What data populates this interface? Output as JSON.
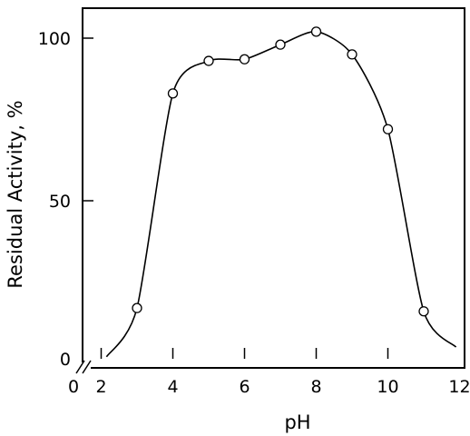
{
  "chart_data": {
    "type": "line",
    "title": "",
    "xlabel": "pH",
    "ylabel": "Residual Activity, %",
    "xlim": [
      0,
      12
    ],
    "ylim": [
      0,
      100
    ],
    "x_axis_break": true,
    "x_origin_label": "0",
    "y_origin_label": "0",
    "x_ticks": [
      {
        "value": 2,
        "label": "2"
      },
      {
        "value": 4,
        "label": "4"
      },
      {
        "value": 6,
        "label": "6"
      },
      {
        "value": 8,
        "label": "8"
      },
      {
        "value": 10,
        "label": "10"
      },
      {
        "value": 12,
        "label": "12"
      }
    ],
    "y_ticks": [
      {
        "value": 50,
        "label": "50"
      },
      {
        "value": 100,
        "label": "100"
      }
    ],
    "series": [
      {
        "x": [
          3,
          4,
          5,
          6,
          7,
          8,
          9,
          10,
          11
        ],
        "y": [
          17,
          83,
          93,
          93.5,
          98,
          102,
          95,
          72,
          16
        ]
      }
    ],
    "curve_extrapolation": {
      "start": {
        "x": 2.15,
        "y": 2
      },
      "end": {
        "x": 11.9,
        "y": 5
      }
    },
    "grid": false,
    "legend": "none",
    "line_color": "#000000",
    "marker": "open-circle"
  }
}
